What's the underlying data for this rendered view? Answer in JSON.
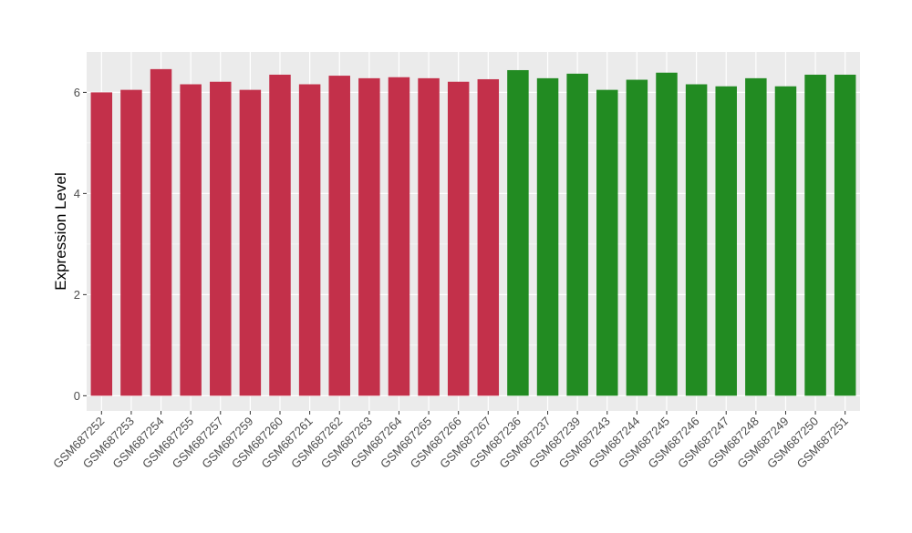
{
  "chart_data": {
    "type": "bar",
    "title": "",
    "xlabel": "",
    "ylabel": "Expression Level",
    "ylim": [
      -0.3,
      6.8
    ],
    "yticks": [
      0,
      2,
      4,
      6
    ],
    "grid": true,
    "legend": "none",
    "categories": [
      "GSM687252",
      "GSM687253",
      "GSM687254",
      "GSM687255",
      "GSM687257",
      "GSM687259",
      "GSM687260",
      "GSM687261",
      "GSM687262",
      "GSM687263",
      "GSM687264",
      "GSM687265",
      "GSM687266",
      "GSM687267",
      "GSM687236",
      "GSM687237",
      "GSM687239",
      "GSM687243",
      "GSM687244",
      "GSM687245",
      "GSM687246",
      "GSM687247",
      "GSM687248",
      "GSM687249",
      "GSM687250",
      "GSM687251"
    ],
    "values": [
      6.0,
      6.05,
      6.46,
      6.16,
      6.21,
      6.05,
      6.35,
      6.16,
      6.33,
      6.28,
      6.3,
      6.28,
      6.21,
      6.26,
      6.44,
      6.28,
      6.37,
      6.05,
      6.25,
      6.39,
      6.16,
      6.12,
      6.28,
      6.12,
      6.35,
      6.35
    ],
    "groups": [
      "red",
      "red",
      "red",
      "red",
      "red",
      "red",
      "red",
      "red",
      "red",
      "red",
      "red",
      "red",
      "red",
      "red",
      "green",
      "green",
      "green",
      "green",
      "green",
      "green",
      "green",
      "green",
      "green",
      "green",
      "green",
      "green"
    ],
    "colors": {
      "red": "#c3304a",
      "green": "#228b22",
      "panel_background": "#ebebeb",
      "gridline": "#ffffff"
    }
  }
}
